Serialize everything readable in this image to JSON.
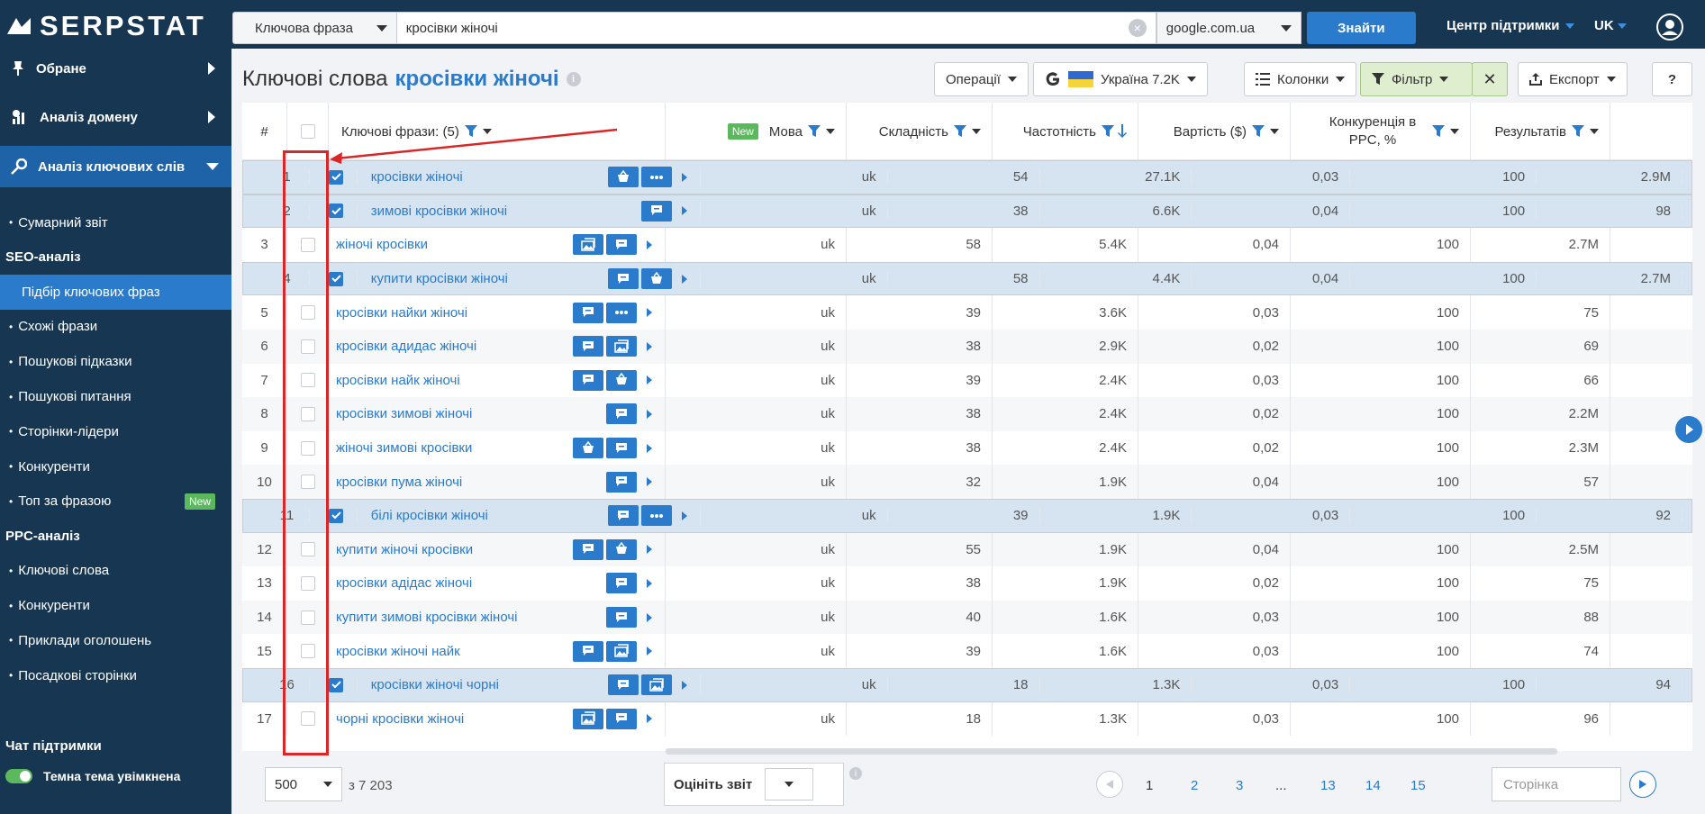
{
  "brand": {
    "name": "SERPSTAT"
  },
  "search": {
    "type": "Ключова фраза",
    "query": "кросівки жіночі",
    "engine": "google.com.ua",
    "submit": "Знайти"
  },
  "header": {
    "help": "Центр підтримки",
    "lang": "UK"
  },
  "sidebar": {
    "main": [
      {
        "label": "Обране"
      },
      {
        "label": "Аналіз домену"
      },
      {
        "label": "Аналіз ключових слів"
      }
    ],
    "summary": "Сумарний звіт",
    "seo_title": "SEO-аналіз",
    "seo_items": [
      "Підбір ключових фраз",
      "Схожі фрази",
      "Пошукові підказки",
      "Пошукові питання",
      "Сторінки-лідери",
      "Конкуренти",
      "Топ за фразою"
    ],
    "new_badge": "New",
    "ppc_title": "PPC-аналіз",
    "ppc_items": [
      "Ключові слова",
      "Конкуренти",
      "Приклади оголошень",
      "Посадкові сторінки"
    ],
    "chat": "Чат підтримки",
    "theme": "Темна тема увімкнена"
  },
  "page": {
    "title": "Ключові слова",
    "query": "кросівки жіночі"
  },
  "toolbar": {
    "operations": "Операції",
    "country": "Україна 7.2K",
    "columns": "Колонки",
    "filter": "Фільтр",
    "export": "Експорт",
    "help": "?"
  },
  "table": {
    "headers": {
      "num": "#",
      "keyword": "Ключові фрази: (5)",
      "new": "New",
      "lang": "Мова",
      "difficulty": "Складність",
      "volume": "Частотність",
      "cost": "Вартість ($)",
      "competition": "Конкуренція в PPC, %",
      "results": "Результатів"
    },
    "rows": [
      {
        "n": "1",
        "kw": "кросівки жіночі",
        "lang": "uk",
        "d": "54",
        "v": "27.1K",
        "c": "0,03",
        "p": "100",
        "r": "2.9M",
        "sel": true,
        "sf": [
          "basket",
          "dots"
        ]
      },
      {
        "n": "2",
        "kw": "зимові кросівки жіночі",
        "lang": "uk",
        "d": "38",
        "v": "6.6K",
        "c": "0,04",
        "p": "100",
        "r": "98",
        "sel": true,
        "sf": [
          "chat"
        ]
      },
      {
        "n": "3",
        "kw": "жіночі кросівки",
        "lang": "uk",
        "d": "58",
        "v": "5.4K",
        "c": "0,04",
        "p": "100",
        "r": "2.7M",
        "sel": false,
        "sf": [
          "img",
          "chat"
        ]
      },
      {
        "n": "4",
        "kw": "купити кросівки жіночі",
        "lang": "uk",
        "d": "58",
        "v": "4.4K",
        "c": "0,04",
        "p": "100",
        "r": "2.7M",
        "sel": true,
        "sf": [
          "chat",
          "basket"
        ]
      },
      {
        "n": "5",
        "kw": "кросівки найки жіночі",
        "lang": "uk",
        "d": "39",
        "v": "3.6K",
        "c": "0,03",
        "p": "100",
        "r": "75",
        "sel": false,
        "sf": [
          "chat",
          "dots"
        ]
      },
      {
        "n": "6",
        "kw": "кросівки адидас жіночі",
        "lang": "uk",
        "d": "38",
        "v": "2.9K",
        "c": "0,02",
        "p": "100",
        "r": "69",
        "sel": false,
        "sf": [
          "chat",
          "img"
        ]
      },
      {
        "n": "7",
        "kw": "кросівки найк жіночі",
        "lang": "uk",
        "d": "39",
        "v": "2.4K",
        "c": "0,03",
        "p": "100",
        "r": "66",
        "sel": false,
        "sf": [
          "chat",
          "basket"
        ]
      },
      {
        "n": "8",
        "kw": "кросівки зимові жіночі",
        "lang": "uk",
        "d": "38",
        "v": "2.4K",
        "c": "0,02",
        "p": "100",
        "r": "2.2M",
        "sel": false,
        "sf": [
          "chat"
        ]
      },
      {
        "n": "9",
        "kw": "жіночі зимові кросівки",
        "lang": "uk",
        "d": "38",
        "v": "2.4K",
        "c": "0,02",
        "p": "100",
        "r": "2.3M",
        "sel": false,
        "sf": [
          "basket",
          "chat"
        ]
      },
      {
        "n": "10",
        "kw": "кросівки пума жіночі",
        "lang": "uk",
        "d": "32",
        "v": "1.9K",
        "c": "0,04",
        "p": "100",
        "r": "57",
        "sel": false,
        "sf": [
          "chat"
        ]
      },
      {
        "n": "11",
        "kw": "білі кросівки жіночі",
        "lang": "uk",
        "d": "39",
        "v": "1.9K",
        "c": "0,03",
        "p": "100",
        "r": "92",
        "sel": true,
        "sf": [
          "chat",
          "dots"
        ]
      },
      {
        "n": "12",
        "kw": "купити жіночі кросівки",
        "lang": "uk",
        "d": "55",
        "v": "1.9K",
        "c": "0,04",
        "p": "100",
        "r": "2.5M",
        "sel": false,
        "sf": [
          "chat",
          "basket"
        ]
      },
      {
        "n": "13",
        "kw": "кросівки адідас жіночі",
        "lang": "uk",
        "d": "38",
        "v": "1.9K",
        "c": "0,02",
        "p": "100",
        "r": "75",
        "sel": false,
        "sf": [
          "chat"
        ]
      },
      {
        "n": "14",
        "kw": "купити зимові кросівки жіночі",
        "lang": "uk",
        "d": "40",
        "v": "1.6K",
        "c": "0,03",
        "p": "100",
        "r": "88",
        "sel": false,
        "sf": [
          "chat"
        ]
      },
      {
        "n": "15",
        "kw": "кросівки жіночі найк",
        "lang": "uk",
        "d": "39",
        "v": "1.6K",
        "c": "0,03",
        "p": "100",
        "r": "74",
        "sel": false,
        "sf": [
          "chat",
          "img"
        ]
      },
      {
        "n": "16",
        "kw": "кросівки жіночі чорні",
        "lang": "uk",
        "d": "18",
        "v": "1.3K",
        "c": "0,03",
        "p": "100",
        "r": "94",
        "sel": true,
        "sf": [
          "chat",
          "img"
        ]
      },
      {
        "n": "17",
        "kw": "чорні кросівки жіночі",
        "lang": "uk",
        "d": "18",
        "v": "1.3K",
        "c": "0,03",
        "p": "100",
        "r": "96",
        "sel": false,
        "sf": [
          "img",
          "chat"
        ]
      }
    ]
  },
  "footer": {
    "per_page": "500",
    "total": "з 7 203",
    "rate": "Оцініть звіт",
    "pages": [
      "1",
      "2",
      "3",
      "...",
      "13",
      "14",
      "15"
    ],
    "page_placeholder": "Сторінка"
  }
}
